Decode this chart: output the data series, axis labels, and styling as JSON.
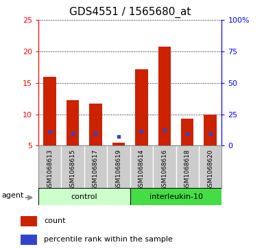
{
  "title": "GDS4551 / 1565680_at",
  "samples": [
    "GSM1068613",
    "GSM1068615",
    "GSM1068617",
    "GSM1068619",
    "GSM1068614",
    "GSM1068616",
    "GSM1068618",
    "GSM1068620"
  ],
  "counts": [
    16.0,
    12.2,
    11.7,
    5.5,
    17.2,
    20.8,
    9.3,
    10.0
  ],
  "percentiles": [
    11.1,
    9.8,
    10.1,
    7.4,
    11.6,
    12.2,
    9.4,
    9.3
  ],
  "count_base": 5.0,
  "ylim_left": [
    5,
    25
  ],
  "yticks_left": [
    5,
    10,
    15,
    20,
    25
  ],
  "yticks_right": [
    0,
    25,
    50,
    75,
    100
  ],
  "ytick_labels_right": [
    "0",
    "25",
    "50",
    "75",
    "100%"
  ],
  "bar_color": "#cc2200",
  "marker_color": "#3344cc",
  "bar_width": 0.55,
  "groups": [
    {
      "label": "control",
      "indices": [
        0,
        1,
        2,
        3
      ],
      "color": "#ccffcc"
    },
    {
      "label": "interleukin-10",
      "indices": [
        4,
        5,
        6,
        7
      ],
      "color": "#44dd44"
    }
  ],
  "agent_label": "agent",
  "legend_count": "count",
  "legend_percentile": "percentile rank within the sample",
  "sample_bg_color": "#cccccc",
  "sample_border_color": "#888888",
  "plot_bg": "#ffffff",
  "title_fontsize": 11,
  "tick_fontsize": 8,
  "sample_fontsize": 6.5,
  "group_fontsize": 8,
  "legend_fontsize": 8
}
